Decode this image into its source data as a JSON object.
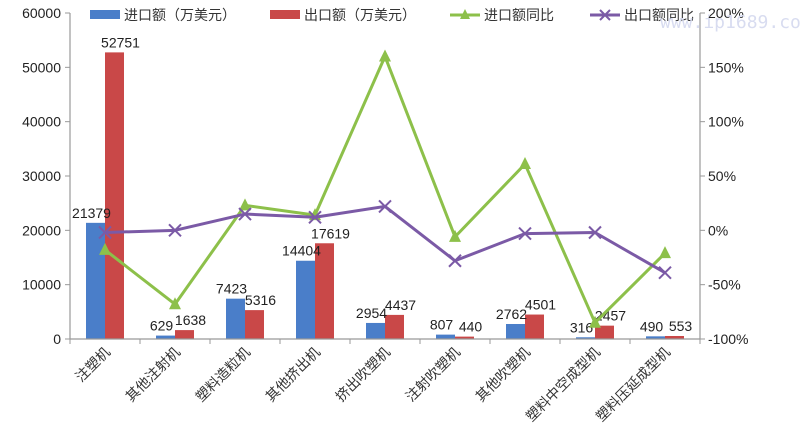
{
  "chart_data": {
    "type": "bar",
    "title": "",
    "categories": [
      "注塑机",
      "其他注射机",
      "塑料造粒机",
      "其他挤出机",
      "挤出吹塑机",
      "注射吹塑机",
      "其他吹塑机",
      "塑料中空成型机",
      "塑料压延成型机"
    ],
    "series": [
      {
        "name": "进口额（万美元）",
        "type": "bar",
        "axis": "left",
        "color": "#4a7ec9",
        "values": [
          21379,
          629,
          7423,
          14404,
          2954,
          807,
          2762,
          316,
          490
        ]
      },
      {
        "name": "出口额（万美元）",
        "type": "bar",
        "axis": "left",
        "color": "#c94848",
        "values": [
          52751,
          1638,
          5316,
          17619,
          4437,
          440,
          4501,
          2457,
          553
        ]
      },
      {
        "name": "进口额同比",
        "type": "line",
        "axis": "right",
        "marker": "triangle",
        "color": "#8dc04a",
        "values": [
          -18,
          -68,
          23,
          14,
          160,
          -6,
          61,
          -85,
          -21
        ]
      },
      {
        "name": "出口额同比",
        "type": "line",
        "axis": "right",
        "marker": "x",
        "color": "#7b5aa6",
        "values": [
          -2,
          0,
          15,
          12,
          22,
          -28,
          -3,
          -2,
          -39
        ]
      }
    ],
    "left_axis": {
      "min": 0,
      "max": 60000,
      "step": 10000,
      "ticks": [
        "0",
        "10000",
        "20000",
        "30000",
        "40000",
        "50000",
        "60000"
      ]
    },
    "right_axis": {
      "min": -100,
      "max": 200,
      "step": 50,
      "ticks": [
        "-100%",
        "-50%",
        "0%",
        "50%",
        "100%",
        "150%",
        "200%"
      ]
    },
    "xlabel": "",
    "ylabel": "",
    "ylabel_right": "",
    "grid": false,
    "legend_position": "top"
  },
  "watermark": "www.ip1689.com"
}
